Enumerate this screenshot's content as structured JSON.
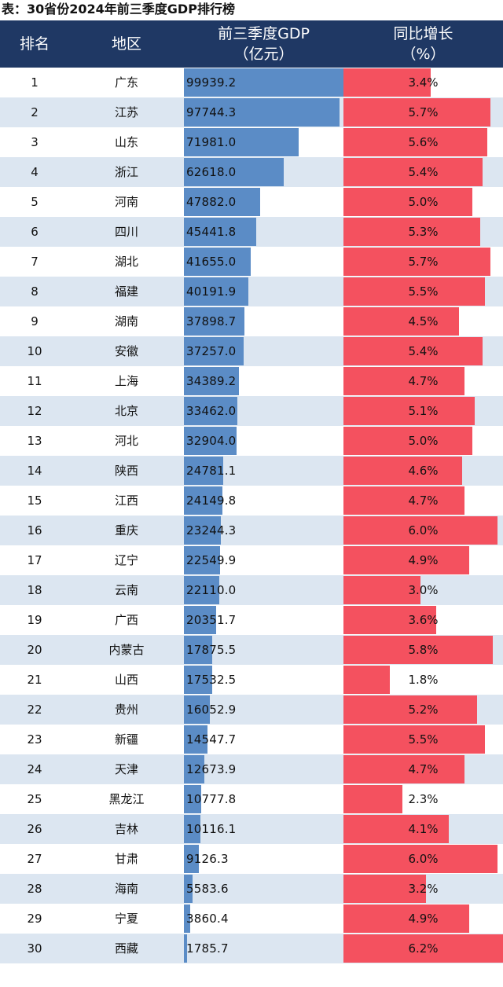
{
  "caption": "表：30省份2024年前三季度GDP排行榜",
  "header": {
    "rank": "排名",
    "region": "地区",
    "gdp_line1": "前三季度GDP",
    "gdp_line2": "（亿元）",
    "growth_line1": "同比增长",
    "growth_line2": "（%）"
  },
  "colors": {
    "header_bg": "#1f3864",
    "gdp_bar": "#5b8cc6",
    "growth_bar": "#f4515f",
    "row_stripe": "#dce6f1"
  },
  "chart_data": {
    "type": "table",
    "title": "表：30省份2024年前三季度GDP排行榜",
    "columns": [
      "排名",
      "地区",
      "前三季度GDP（亿元）",
      "同比增长（%）"
    ],
    "rows": [
      {
        "rank": "1",
        "region": "广东",
        "gdp": "99939.2",
        "growth": "3.4%"
      },
      {
        "rank": "2",
        "region": "江苏",
        "gdp": "97744.3",
        "growth": "5.7%"
      },
      {
        "rank": "3",
        "region": "山东",
        "gdp": "71981.0",
        "growth": "5.6%"
      },
      {
        "rank": "4",
        "region": "浙江",
        "gdp": "62618.0",
        "growth": "5.4%"
      },
      {
        "rank": "5",
        "region": "河南",
        "gdp": "47882.0",
        "growth": "5.0%"
      },
      {
        "rank": "6",
        "region": "四川",
        "gdp": "45441.8",
        "growth": "5.3%"
      },
      {
        "rank": "7",
        "region": "湖北",
        "gdp": "41655.0",
        "growth": "5.7%"
      },
      {
        "rank": "8",
        "region": "福建",
        "gdp": "40191.9",
        "growth": "5.5%"
      },
      {
        "rank": "9",
        "region": "湖南",
        "gdp": "37898.7",
        "growth": "4.5%"
      },
      {
        "rank": "10",
        "region": "安徽",
        "gdp": "37257.0",
        "growth": "5.4%"
      },
      {
        "rank": "11",
        "region": "上海",
        "gdp": "34389.2",
        "growth": "4.7%"
      },
      {
        "rank": "12",
        "region": "北京",
        "gdp": "33462.0",
        "growth": "5.1%"
      },
      {
        "rank": "13",
        "region": "河北",
        "gdp": "32904.0",
        "growth": "5.0%"
      },
      {
        "rank": "14",
        "region": "陕西",
        "gdp": "24781.1",
        "growth": "4.6%"
      },
      {
        "rank": "15",
        "region": "江西",
        "gdp": "24149.8",
        "growth": "4.7%"
      },
      {
        "rank": "16",
        "region": "重庆",
        "gdp": "23244.3",
        "growth": "6.0%"
      },
      {
        "rank": "17",
        "region": "辽宁",
        "gdp": "22549.9",
        "growth": "4.9%"
      },
      {
        "rank": "18",
        "region": "云南",
        "gdp": "22110.0",
        "growth": "3.0%"
      },
      {
        "rank": "19",
        "region": "广西",
        "gdp": "20351.7",
        "growth": "3.6%"
      },
      {
        "rank": "20",
        "region": "内蒙古",
        "gdp": "17875.5",
        "growth": "5.8%"
      },
      {
        "rank": "21",
        "region": "山西",
        "gdp": "17532.5",
        "growth": "1.8%"
      },
      {
        "rank": "22",
        "region": "贵州",
        "gdp": "16052.9",
        "growth": "5.2%"
      },
      {
        "rank": "23",
        "region": "新疆",
        "gdp": "14547.7",
        "growth": "5.5%"
      },
      {
        "rank": "24",
        "region": "天津",
        "gdp": "12673.9",
        "growth": "4.7%"
      },
      {
        "rank": "25",
        "region": "黑龙江",
        "gdp": "10777.8",
        "growth": "2.3%"
      },
      {
        "rank": "26",
        "region": "吉林",
        "gdp": "10116.1",
        "growth": "4.1%"
      },
      {
        "rank": "27",
        "region": "甘肃",
        "gdp": "9126.3",
        "growth": "6.0%"
      },
      {
        "rank": "28",
        "region": "海南",
        "gdp": "5583.6",
        "growth": "3.2%"
      },
      {
        "rank": "29",
        "region": "宁夏",
        "gdp": "3860.4",
        "growth": "4.9%"
      },
      {
        "rank": "30",
        "region": "西藏",
        "gdp": "1785.7",
        "growth": "6.2%"
      }
    ],
    "gdp_range": [
      0,
      100000
    ],
    "growth_range": [
      0,
      6.2
    ]
  }
}
